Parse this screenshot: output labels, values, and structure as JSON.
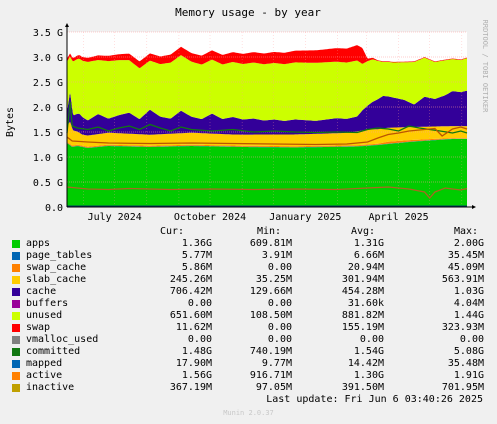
{
  "chart_data": {
    "type": "area",
    "title": "Memory usage - by year",
    "ylabel": "Bytes",
    "side_label": "RRDTOOL / TOBI OETIKER",
    "ylim": [
      0,
      3.5
    ],
    "y_unit": "G",
    "y_ticks": [
      "0.0",
      "0.5 G",
      "1.0 G",
      "1.5 G",
      "2.0 G",
      "2.5 G",
      "3.0 G",
      "3.5 G"
    ],
    "x_ticks": [
      "July 2024",
      "October 2024",
      "January 2025",
      "April 2025"
    ],
    "grid": true,
    "x_range": [
      "2024-05-16",
      "2025-06-06"
    ],
    "series": [
      {
        "name": "apps",
        "color": "#00cc00",
        "kind": "stack",
        "points": [
          [
            0,
            1.28
          ],
          [
            5,
            1.2
          ],
          [
            10,
            1.22
          ],
          [
            20,
            1.18
          ],
          [
            40,
            1.22
          ],
          [
            80,
            1.2
          ],
          [
            120,
            1.22
          ],
          [
            170,
            1.2
          ],
          [
            220,
            1.19
          ],
          [
            250,
            1.2
          ],
          [
            280,
            1.21
          ],
          [
            300,
            1.24
          ],
          [
            330,
            1.3
          ],
          [
            350,
            1.33
          ],
          [
            372,
            1.36
          ],
          [
            386,
            1.36
          ]
        ]
      },
      {
        "name": "page_tables",
        "color": "#0066b3",
        "kind": "stack",
        "points": [
          [
            0,
            0.006
          ],
          [
            386,
            0.006
          ]
        ]
      },
      {
        "name": "swap_cache",
        "color": "#ff8000",
        "kind": "stack",
        "points": [
          [
            0,
            0.02
          ],
          [
            300,
            0.02
          ],
          [
            310,
            0.04
          ],
          [
            386,
            0.006
          ]
        ]
      },
      {
        "name": "slab_cache",
        "color": "#ffcc00",
        "kind": "stack",
        "points": [
          [
            0,
            0.32
          ],
          [
            3,
            0.45
          ],
          [
            6,
            0.3
          ],
          [
            15,
            0.22
          ],
          [
            40,
            0.24
          ],
          [
            80,
            0.22
          ],
          [
            120,
            0.24
          ],
          [
            160,
            0.22
          ],
          [
            200,
            0.23
          ],
          [
            240,
            0.24
          ],
          [
            270,
            0.25
          ],
          [
            290,
            0.3
          ],
          [
            310,
            0.28
          ],
          [
            330,
            0.26
          ],
          [
            350,
            0.25
          ],
          [
            372,
            0.24
          ],
          [
            386,
            0.245
          ]
        ]
      },
      {
        "name": "cache",
        "color": "#330099",
        "kind": "stack",
        "points": [
          [
            0,
            0.28
          ],
          [
            3,
            0.6
          ],
          [
            6,
            0.3
          ],
          [
            12,
            0.38
          ],
          [
            20,
            0.3
          ],
          [
            30,
            0.4
          ],
          [
            40,
            0.28
          ],
          [
            50,
            0.36
          ],
          [
            60,
            0.42
          ],
          [
            70,
            0.3
          ],
          [
            80,
            0.5
          ],
          [
            90,
            0.35
          ],
          [
            100,
            0.3
          ],
          [
            110,
            0.45
          ],
          [
            120,
            0.32
          ],
          [
            130,
            0.28
          ],
          [
            140,
            0.4
          ],
          [
            150,
            0.3
          ],
          [
            160,
            0.35
          ],
          [
            170,
            0.3
          ],
          [
            180,
            0.32
          ],
          [
            190,
            0.28
          ],
          [
            200,
            0.3
          ],
          [
            210,
            0.27
          ],
          [
            220,
            0.3
          ],
          [
            230,
            0.28
          ],
          [
            240,
            0.26
          ],
          [
            250,
            0.28
          ],
          [
            260,
            0.3
          ],
          [
            270,
            0.28
          ],
          [
            280,
            0.3
          ],
          [
            285,
            0.4
          ],
          [
            295,
            0.55
          ],
          [
            305,
            0.65
          ],
          [
            315,
            0.6
          ],
          [
            325,
            0.55
          ],
          [
            335,
            0.45
          ],
          [
            345,
            0.6
          ],
          [
            355,
            0.55
          ],
          [
            365,
            0.62
          ],
          [
            372,
            0.7
          ],
          [
            380,
            0.68
          ],
          [
            386,
            0.71
          ]
        ]
      },
      {
        "name": "buffers",
        "color": "#990099",
        "kind": "stack",
        "points": [
          [
            0,
            0.002
          ],
          [
            386,
            0.0
          ]
        ]
      },
      {
        "name": "unused",
        "color": "#ccff00",
        "kind": "stack",
        "points": [
          [
            0,
            1.0
          ],
          [
            3,
            0.7
          ],
          [
            6,
            1.08
          ],
          [
            12,
            1.1
          ],
          [
            20,
            1.17
          ],
          [
            30,
            1.08
          ],
          [
            40,
            1.15
          ],
          [
            60,
            1.05
          ],
          [
            80,
            0.98
          ],
          [
            100,
            1.12
          ],
          [
            120,
            1.1
          ],
          [
            140,
            1.08
          ],
          [
            160,
            1.1
          ],
          [
            180,
            1.12
          ],
          [
            200,
            1.13
          ],
          [
            220,
            1.14
          ],
          [
            240,
            1.16
          ],
          [
            260,
            1.13
          ],
          [
            280,
            1.12
          ],
          [
            285,
            0.93
          ],
          [
            295,
            0.85
          ],
          [
            305,
            0.68
          ],
          [
            315,
            0.7
          ],
          [
            325,
            0.75
          ],
          [
            335,
            0.85
          ],
          [
            345,
            0.78
          ],
          [
            355,
            0.74
          ],
          [
            365,
            0.7
          ],
          [
            372,
            0.64
          ],
          [
            380,
            0.64
          ],
          [
            386,
            0.65
          ]
        ]
      },
      {
        "name": "swap",
        "color": "#ff0000",
        "kind": "stack",
        "points": [
          [
            0,
            0.06
          ],
          [
            20,
            0.08
          ],
          [
            60,
            0.13
          ],
          [
            100,
            0.16
          ],
          [
            150,
            0.19
          ],
          [
            200,
            0.22
          ],
          [
            240,
            0.25
          ],
          [
            270,
            0.28
          ],
          [
            285,
            0.32
          ],
          [
            290,
            0.05
          ],
          [
            300,
            0.012
          ],
          [
            386,
            0.012
          ]
        ]
      },
      {
        "name": "vmalloc_used",
        "color": "#cccccc",
        "kind": "stack",
        "points": [
          [
            0,
            0.0
          ],
          [
            386,
            0.0
          ]
        ]
      },
      {
        "name": "committed",
        "color": "#666666",
        "kind": "line",
        "line_color": "#117711",
        "points": [
          [
            0,
            1.48
          ],
          [
            3,
            2.1
          ],
          [
            5,
            1.62
          ],
          [
            10,
            1.58
          ],
          [
            20,
            1.55
          ],
          [
            30,
            1.6
          ],
          [
            40,
            1.52
          ],
          [
            50,
            1.58
          ],
          [
            60,
            1.62
          ],
          [
            70,
            1.55
          ],
          [
            80,
            1.65
          ],
          [
            90,
            1.58
          ],
          [
            100,
            1.52
          ],
          [
            110,
            1.6
          ],
          [
            120,
            1.55
          ],
          [
            140,
            1.52
          ],
          [
            160,
            1.55
          ],
          [
            180,
            1.5
          ],
          [
            200,
            1.52
          ],
          [
            220,
            1.5
          ],
          [
            240,
            1.49
          ],
          [
            260,
            1.5
          ],
          [
            280,
            1.49
          ],
          [
            290,
            1.55
          ],
          [
            300,
            1.58
          ],
          [
            310,
            1.56
          ],
          [
            320,
            1.52
          ],
          [
            330,
            1.62
          ],
          [
            340,
            1.58
          ],
          [
            350,
            1.55
          ],
          [
            360,
            1.52
          ],
          [
            372,
            1.48
          ],
          [
            380,
            1.52
          ],
          [
            386,
            1.48
          ]
        ]
      },
      {
        "name": "mapped",
        "color": "#004a7f",
        "kind": "line",
        "line_color": "#003b66",
        "points": [
          [
            0,
            0.018
          ],
          [
            386,
            0.018
          ]
        ]
      },
      {
        "name": "active",
        "color": "#b35a00",
        "kind": "line",
        "line_color": "#bb5500",
        "points": [
          [
            0,
            1.4
          ],
          [
            5,
            1.32
          ],
          [
            20,
            1.3
          ],
          [
            40,
            1.28
          ],
          [
            80,
            1.27
          ],
          [
            120,
            1.28
          ],
          [
            160,
            1.27
          ],
          [
            200,
            1.26
          ],
          [
            240,
            1.25
          ],
          [
            270,
            1.26
          ],
          [
            290,
            1.3
          ],
          [
            300,
            1.38
          ],
          [
            310,
            1.45
          ],
          [
            320,
            1.48
          ],
          [
            330,
            1.52
          ],
          [
            345,
            1.55
          ],
          [
            355,
            1.57
          ],
          [
            362,
            1.42
          ],
          [
            372,
            1.56
          ],
          [
            380,
            1.6
          ],
          [
            386,
            1.56
          ]
        ]
      },
      {
        "name": "inactive",
        "color": "#b38f00",
        "kind": "line",
        "line_color": "#aa6622",
        "points": [
          [
            0,
            0.4
          ],
          [
            10,
            0.38
          ],
          [
            20,
            0.36
          ],
          [
            40,
            0.35
          ],
          [
            60,
            0.37
          ],
          [
            80,
            0.36
          ],
          [
            100,
            0.35
          ],
          [
            140,
            0.36
          ],
          [
            180,
            0.35
          ],
          [
            220,
            0.36
          ],
          [
            260,
            0.35
          ],
          [
            290,
            0.38
          ],
          [
            310,
            0.4
          ],
          [
            330,
            0.36
          ],
          [
            345,
            0.3
          ],
          [
            350,
            0.18
          ],
          [
            355,
            0.3
          ],
          [
            365,
            0.38
          ],
          [
            372,
            0.36
          ],
          [
            380,
            0.34
          ],
          [
            386,
            0.37
          ]
        ]
      }
    ],
    "legend_header": {
      "cur": "Cur:",
      "min": "Min:",
      "avg": "Avg:",
      "max": "Max:"
    },
    "legend": [
      {
        "name": "apps",
        "color": "#00cc00",
        "cur": "1.36G",
        "min": "609.81M",
        "avg": "1.31G",
        "max": "2.00G"
      },
      {
        "name": "page_tables",
        "color": "#0066b3",
        "cur": "5.77M",
        "min": "3.91M",
        "avg": "6.66M",
        "max": "35.45M"
      },
      {
        "name": "swap_cache",
        "color": "#ff8000",
        "cur": "5.86M",
        "min": "0.00",
        "avg": "20.94M",
        "max": "45.09M"
      },
      {
        "name": "slab_cache",
        "color": "#ffcc00",
        "cur": "245.26M",
        "min": "35.25M",
        "avg": "301.94M",
        "max": "563.91M"
      },
      {
        "name": "cache",
        "color": "#330099",
        "cur": "706.42M",
        "min": "129.66M",
        "avg": "454.28M",
        "max": "1.03G"
      },
      {
        "name": "buffers",
        "color": "#990099",
        "cur": "0.00",
        "min": "0.00",
        "avg": "31.60k",
        "max": "4.04M"
      },
      {
        "name": "unused",
        "color": "#ccff00",
        "cur": "651.60M",
        "min": "108.50M",
        "avg": "881.82M",
        "max": "1.44G"
      },
      {
        "name": "swap",
        "color": "#ff0000",
        "cur": "11.62M",
        "min": "0.00",
        "avg": "155.19M",
        "max": "323.93M"
      },
      {
        "name": "vmalloc_used",
        "color": "#808080",
        "cur": "0.00",
        "min": "0.00",
        "avg": "0.00",
        "max": "0.00"
      },
      {
        "name": "committed",
        "color": "#117711",
        "cur": "1.48G",
        "min": "740.19M",
        "avg": "1.54G",
        "max": "5.08G"
      },
      {
        "name": "mapped",
        "color": "#0066b3",
        "cur": "17.90M",
        "min": "9.77M",
        "avg": "14.42M",
        "max": "35.48M"
      },
      {
        "name": "active",
        "color": "#ff8000",
        "cur": "1.56G",
        "min": "916.71M",
        "avg": "1.30G",
        "max": "1.91G"
      },
      {
        "name": "inactive",
        "color": "#c0a000",
        "cur": "367.19M",
        "min": "97.05M",
        "avg": "391.50M",
        "max": "701.95M"
      }
    ],
    "last_update": "Last update: Fri Jun  6 03:40:26 2025",
    "footer": "Munin 2.0.37"
  }
}
